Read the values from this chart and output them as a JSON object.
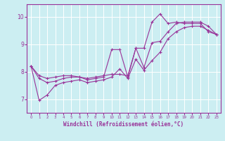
{
  "xlabel": "Windchill (Refroidissement éolien,°C)",
  "background_color": "#cceef2",
  "grid_color": "#ffffff",
  "line_color": "#993399",
  "x_ticks": [
    0,
    1,
    2,
    3,
    4,
    5,
    6,
    7,
    8,
    9,
    10,
    11,
    12,
    13,
    14,
    15,
    16,
    17,
    18,
    19,
    20,
    21,
    22,
    23
  ],
  "y_ticks": [
    7,
    8,
    9,
    10
  ],
  "ylim": [
    6.5,
    10.45
  ],
  "xlim": [
    -0.5,
    23.5
  ],
  "series": [
    {
      "x": [
        0,
        1,
        2,
        3,
        4,
        5,
        6,
        7,
        8,
        9,
        10,
        11,
        12,
        13,
        14,
        15,
        16,
        17,
        18,
        19,
        20,
        21,
        22,
        23
      ],
      "y": [
        8.2,
        7.85,
        7.75,
        7.8,
        7.85,
        7.85,
        7.8,
        7.75,
        7.8,
        7.85,
        7.9,
        7.9,
        7.85,
        8.85,
        8.85,
        9.8,
        10.1,
        9.75,
        9.8,
        9.75,
        9.75,
        9.75,
        9.45,
        9.35
      ]
    },
    {
      "x": [
        0,
        1,
        2,
        3,
        4,
        5,
        6,
        7,
        8,
        9,
        10,
        11,
        12,
        13,
        14,
        15,
        16,
        17,
        18,
        19,
        20,
        21,
        22,
        23
      ],
      "y": [
        8.2,
        7.75,
        7.6,
        7.65,
        7.75,
        7.8,
        7.8,
        7.7,
        7.75,
        7.8,
        8.8,
        8.8,
        7.8,
        8.85,
        8.15,
        9.05,
        9.1,
        9.45,
        9.75,
        9.8,
        9.8,
        9.8,
        9.65,
        9.35
      ]
    },
    {
      "x": [
        0,
        1,
        2,
        3,
        4,
        5,
        6,
        7,
        8,
        9,
        10,
        11,
        12,
        13,
        14,
        15,
        16,
        17,
        18,
        19,
        20,
        21,
        22,
        23
      ],
      "y": [
        8.2,
        6.95,
        7.15,
        7.5,
        7.6,
        7.65,
        7.7,
        7.6,
        7.65,
        7.7,
        7.8,
        8.1,
        7.75,
        8.45,
        8.05,
        8.4,
        8.7,
        9.2,
        9.45,
        9.6,
        9.65,
        9.65,
        9.5,
        9.35
      ]
    }
  ]
}
